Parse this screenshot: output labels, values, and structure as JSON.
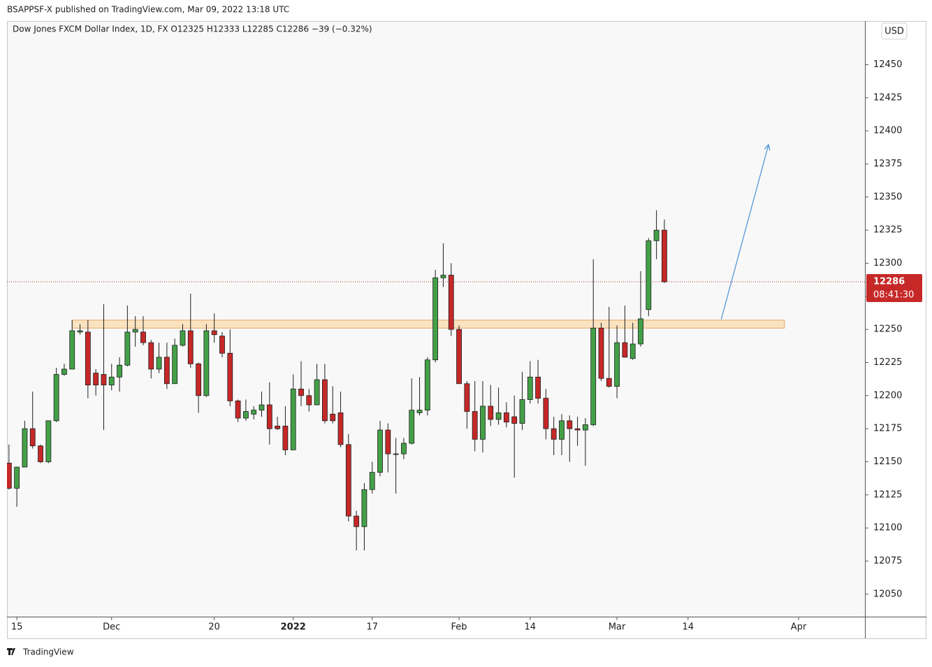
{
  "chart_data": {
    "type": "candlestick",
    "header": "BSAPPSF-X published on TradingView.com, Mar 09, 2022 13:18 UTC",
    "title": "Dow Jones FXCM Dollar Index, 1D, FX  O12325  H12333  L12285  C12286  −39 (−0.32%)",
    "currency": "USD",
    "last_price": 12286,
    "countdown": "08:41:30",
    "footer": "TradingView",
    "up_color": "#43a047",
    "down_color": "#c62828",
    "wick_color": "#1e1e1e",
    "open": [
      12149,
      12130,
      12146,
      12175,
      12162,
      12150,
      12181,
      12216,
      12220,
      12248,
      12248,
      12217,
      12216,
      12208,
      12214,
      12223,
      12248,
      12248,
      12240,
      12220,
      12229,
      12209,
      12238,
      12249,
      12224,
      12200,
      12249,
      12245,
      12232,
      12196,
      12183,
      12186,
      12189,
      12193,
      12177,
      12177,
      12159,
      12205,
      12200,
      12193,
      12212,
      12186,
      12187,
      12163,
      12109,
      12101,
      12129,
      12142,
      12174,
      12156,
      12156,
      12164,
      12187,
      12189,
      12227,
      12289,
      12291,
      12250,
      12209,
      12188,
      12167,
      12192,
      12182,
      12187,
      12184,
      12179,
      12197,
      12214,
      12198,
      12175,
      12167,
      12181,
      12175,
      12174,
      12178,
      12251,
      12213,
      12207,
      12240,
      12228,
      12239,
      12265,
      12317,
      12325
    ],
    "high": [
      12163,
      12146,
      12181,
      12203,
      12163,
      12181,
      12221,
      12224,
      12257,
      12254,
      12257,
      12220,
      12269,
      12224,
      12229,
      12268,
      12260,
      12260,
      12242,
      12240,
      12240,
      12243,
      12254,
      12277,
      12225,
      12254,
      12262,
      12248,
      12250,
      12197,
      12197,
      12192,
      12203,
      12210,
      12184,
      12192,
      12216,
      12226,
      12205,
      12224,
      12224,
      12207,
      12203,
      12171,
      12113,
      12134,
      12150,
      12181,
      12179,
      12168,
      12168,
      12213,
      12214,
      12229,
      12295,
      12315,
      12300,
      12253,
      12211,
      12211,
      12211,
      12208,
      12206,
      12195,
      12200,
      12218,
      12226,
      12227,
      12205,
      12184,
      12186,
      12185,
      12184,
      12183,
      12303,
      12255,
      12267,
      12253,
      12268,
      12255,
      12294,
      12319,
      12340,
      12333
    ],
    "low": [
      12129,
      12116,
      12146,
      12160,
      12149,
      12149,
      12180,
      12215,
      12220,
      12246,
      12198,
      12200,
      12174,
      12204,
      12203,
      12222,
      12237,
      12238,
      12213,
      12217,
      12205,
      12209,
      12237,
      12221,
      12187,
      12199,
      12240,
      12229,
      12192,
      12180,
      12181,
      12182,
      12184,
      12163,
      12174,
      12155,
      12159,
      12192,
      12188,
      12193,
      12179,
      12179,
      12161,
      12105,
      12083,
      12083,
      12126,
      12139,
      12142,
      12126,
      12152,
      12163,
      12185,
      12185,
      12225,
      12282,
      12245,
      12209,
      12175,
      12158,
      12157,
      12177,
      12178,
      12176,
      12138,
      12174,
      12194,
      12194,
      12167,
      12155,
      12155,
      12150,
      12162,
      12147,
      12177,
      12211,
      12206,
      12198,
      12229,
      12227,
      12237,
      12260,
      12303,
      12285
    ],
    "close": [
      12130,
      12146,
      12175,
      12162,
      12150,
      12181,
      12216,
      12220,
      12249,
      12249,
      12208,
      12208,
      12208,
      12214,
      12223,
      12248,
      12250,
      12240,
      12220,
      12229,
      12209,
      12238,
      12249,
      12224,
      12200,
      12249,
      12246,
      12232,
      12196,
      12183,
      12188,
      12189,
      12193,
      12175,
      12175,
      12159,
      12205,
      12200,
      12193,
      12212,
      12181,
      12181,
      12163,
      12109,
      12101,
      12129,
      12142,
      12174,
      12156,
      12156,
      12164,
      12189,
      12189,
      12227,
      12289,
      12291,
      12250,
      12209,
      12188,
      12167,
      12192,
      12182,
      12187,
      12180,
      12179,
      12197,
      12214,
      12198,
      12175,
      12167,
      12181,
      12175,
      12174,
      12178,
      12251,
      12213,
      12207,
      12240,
      12229,
      12239,
      12258,
      12317,
      12325,
      12286
    ],
    "xlim": [
      -0.25,
      108.4
    ],
    "xticks": [
      {
        "value": 1,
        "label": "15"
      },
      {
        "value": 13,
        "label": "Dec"
      },
      {
        "value": 26,
        "label": "20"
      },
      {
        "value": 36,
        "label": "2022"
      },
      {
        "value": 46,
        "label": "17"
      },
      {
        "value": 57,
        "label": "Feb"
      },
      {
        "value": 66,
        "label": "14"
      },
      {
        "value": 77,
        "label": "Mar"
      },
      {
        "value": 86,
        "label": "14"
      },
      {
        "value": 100,
        "label": "Apr"
      }
    ],
    "ylim": [
      12033,
      12483
    ],
    "yticks": [
      12050,
      12075,
      12100,
      12125,
      12150,
      12175,
      12200,
      12225,
      12250,
      12275,
      12300,
      12325,
      12350,
      12375,
      12400,
      12425,
      12450
    ],
    "zone": {
      "from": 8,
      "to": 98.2,
      "low": 12251,
      "high": 12257,
      "color": "#fbe3c2"
    },
    "arrow": {
      "x": [
        90.2,
        96.2
      ],
      "y": [
        12257.6,
        12389.7
      ],
      "color": "#4a90d9"
    }
  }
}
